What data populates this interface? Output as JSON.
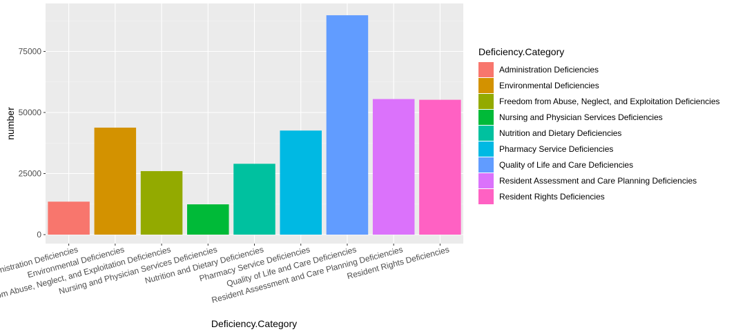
{
  "chart_data": {
    "type": "bar",
    "xlabel": "Deficiency.Category",
    "ylabel": "number",
    "legend_title": "Deficiency.Category",
    "legend_position": "right",
    "grid": true,
    "ylim": [
      0,
      92000
    ],
    "yticks": [
      0,
      25000,
      50000,
      75000
    ],
    "ytick_labels": [
      "0",
      "25000",
      "50000",
      "75000"
    ],
    "categories": [
      "Administration Deficiencies",
      "Environmental Deficiencies",
      "Freedom from Abuse, Neglect, and Exploitation Deficiencies",
      "Nursing and Physician Services Deficiencies",
      "Nutrition and Dietary Deficiencies",
      "Pharmacy Service Deficiencies",
      "Quality of Life and Care Deficiencies",
      "Resident Assessment and Care Planning Deficiencies",
      "Resident Rights Deficiencies"
    ],
    "values": [
      13500,
      43800,
      26000,
      12400,
      29000,
      42600,
      89800,
      55500,
      55200
    ],
    "colors": [
      "#F8766D",
      "#D39200",
      "#93AA00",
      "#00BA38",
      "#00C19F",
      "#00B9E3",
      "#619CFF",
      "#DB72FB",
      "#FF61C3"
    ]
  }
}
